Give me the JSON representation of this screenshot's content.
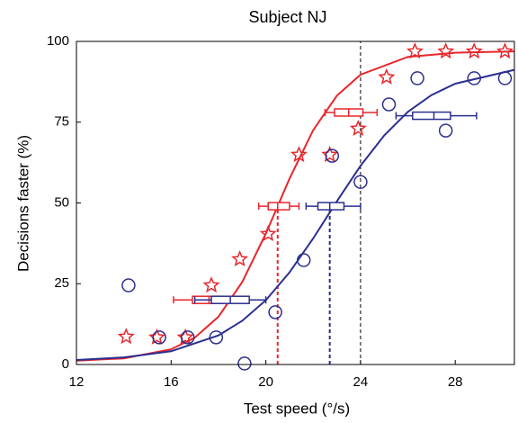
{
  "chart_data": {
    "type": "scatter",
    "title": "Subject NJ",
    "x_label": "Test speed (°/s)",
    "y_label": "Decisions faster (%)",
    "xlim": [
      12,
      30.5
    ],
    "ylim": [
      0,
      100
    ],
    "xticks": [
      12,
      16,
      20,
      24,
      28
    ],
    "yticks": [
      0,
      25,
      50,
      75,
      100
    ],
    "series": [
      {
        "color": "#e8262b",
        "marker": "star",
        "x": [
          14.1,
          15.4,
          16.6,
          17.7,
          18.9,
          20.1,
          21.4,
          22.7,
          23.9,
          25.1,
          26.3,
          27.6,
          28.8,
          30.1
        ],
        "values": [
          8.6,
          8.4,
          8.4,
          24.5,
          32.6,
          40.4,
          64.9,
          64.9,
          73.0,
          88.9,
          96.9,
          96.9,
          96.9,
          96.9
        ]
      },
      {
        "color": "#2b2f8f",
        "marker": "circle",
        "x": [
          14.2,
          15.5,
          16.7,
          17.9,
          19.1,
          20.4,
          21.6,
          22.8,
          24.0,
          25.2,
          26.4,
          27.6,
          28.8,
          30.1
        ],
        "values": [
          24.5,
          8.4,
          8.4,
          8.4,
          0.3,
          16.2,
          32.3,
          64.6,
          56.5,
          80.5,
          88.6,
          72.4,
          88.6,
          88.6
        ]
      }
    ],
    "fits": [
      {
        "color": "#e8262b",
        "x": [
          12,
          14,
          16,
          17,
          18,
          19,
          20,
          21,
          22,
          23,
          24,
          26,
          28,
          30.5
        ],
        "values": [
          1.2,
          1.9,
          4.7,
          8.3,
          14.8,
          25.5,
          40.5,
          57.5,
          72.5,
          83.2,
          89.7,
          95.2,
          96.5,
          96.9
        ]
      },
      {
        "color": "#2b2f8f",
        "x": [
          12,
          14,
          16,
          18,
          19,
          20,
          21,
          22,
          23,
          24,
          25,
          26,
          27,
          28,
          30.5
        ],
        "values": [
          1.4,
          2.2,
          4.1,
          9.0,
          13.5,
          19.9,
          28.5,
          39,
          50.5,
          61.5,
          70.9,
          78.2,
          83.4,
          86.9,
          91.2
        ]
      }
    ],
    "boxes": [
      {
        "color": "#e8262b",
        "y": 20,
        "low": 16.1,
        "q1": 16.9,
        "median": 17.6,
        "q3": 18.2,
        "high": 18.8
      },
      {
        "color": "#e8262b",
        "y": 49,
        "low": 19.7,
        "q1": 20.1,
        "median": 20.5,
        "q3": 21.0,
        "high": 21.4
      },
      {
        "color": "#e8262b",
        "y": 78,
        "low": 22.5,
        "q1": 22.9,
        "median": 23.5,
        "q3": 24.1,
        "high": 24.7
      },
      {
        "color": "#2b2f8f",
        "y": 20,
        "low": 17.0,
        "q1": 17.7,
        "median": 18.5,
        "q3": 19.3,
        "high": 20.0
      },
      {
        "color": "#2b2f8f",
        "y": 49,
        "low": 21.7,
        "q1": 22.2,
        "median": 22.7,
        "q3": 23.3,
        "high": 24.0
      },
      {
        "color": "#2b2f8f",
        "y": 77,
        "low": 25.5,
        "q1": 26.2,
        "median": 27.1,
        "q3": 27.8,
        "high": 28.9
      }
    ],
    "reference_lines": [
      {
        "color": "#e8262b",
        "x": 20.5,
        "top": 49
      },
      {
        "color": "#2b2f8f",
        "x": 22.7,
        "top": 49
      },
      {
        "color": "#000000",
        "x": 24,
        "top": 100
      }
    ]
  }
}
